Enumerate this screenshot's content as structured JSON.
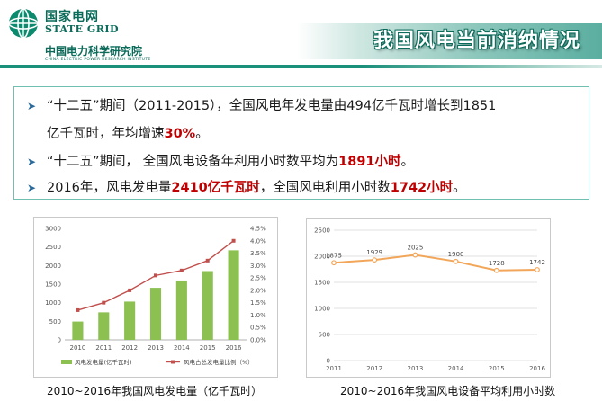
{
  "header": {
    "brand_cn": "国家电网",
    "brand_en": "STATE GRID",
    "institute_cn": "中国电力科学研究院",
    "institute_en": "CHINA ELECTRIC POWER RESEARCH INSTITUTE",
    "title": "我国风电当前消纳情况"
  },
  "bullets": {
    "b1_part1": "“十二五”期间（2011-2015），全国风电年发电量由494亿千瓦时增长到1851",
    "b1_part2": "亿千瓦时，年均增速",
    "b1_hl": "30%",
    "b1_end": "。",
    "b2_part1": "“十二五”期间， 全国风电设备年利用小时数平均为",
    "b2_hl": "1891小时",
    "b2_end": "。",
    "b3_part1": "2016年，风电发电量",
    "b3_hl1": "2410亿千瓦时",
    "b3_part2": "，全国风电利用小时数",
    "b3_hl2": "1742小时",
    "b3_end": "。"
  },
  "colors": {
    "accent": "#1a8f7a",
    "highlight": "#c00000",
    "bar": "#8cc152",
    "line": "#c0504d",
    "util_line": "#f2a65a"
  },
  "captions": {
    "chart1": "2010~2016年我国风电发电量（亿千瓦时）",
    "chart2": "2010~2016年我国风电设备平均利用小时数"
  },
  "chart_data": [
    {
      "type": "bar",
      "categories": [
        "2010",
        "2011",
        "2012",
        "2013",
        "2014",
        "2015",
        "2016"
      ],
      "series": [
        {
          "name": "风电发电量(亿千瓦时)",
          "type": "bar",
          "axis": "left",
          "values": [
            494,
            741,
            1030,
            1401,
            1598,
            1851,
            2410
          ]
        },
        {
          "name": "风电占总发电量比例（%）",
          "type": "line",
          "axis": "right",
          "values": [
            1.2,
            1.5,
            2.0,
            2.6,
            2.8,
            3.2,
            4.0
          ]
        }
      ],
      "ylim_left": [
        0,
        3000
      ],
      "yticks_left": [
        "0",
        "500",
        "1000",
        "1500",
        "2000",
        "2500",
        "3000"
      ],
      "ylim_right": [
        0,
        4.5
      ],
      "yticks_right": [
        "0.0%",
        "0.5%",
        "1.0%",
        "1.5%",
        "2.0%",
        "2.5%",
        "3.0%",
        "3.5%",
        "4.0%",
        "4.5%"
      ],
      "legend": "bottom"
    },
    {
      "type": "line",
      "categories": [
        "2011",
        "2012",
        "2013",
        "2014",
        "2015",
        "2016"
      ],
      "values": [
        1875,
        1929,
        2025,
        1900,
        1728,
        1742
      ],
      "data_labels": [
        "1875",
        "1929",
        "2025",
        "1900",
        "1728",
        "1742"
      ],
      "ylim": [
        0,
        2500
      ],
      "yticks": [
        "0",
        "500",
        "1000",
        "1500",
        "2000",
        "2500"
      ],
      "grid": true
    }
  ]
}
